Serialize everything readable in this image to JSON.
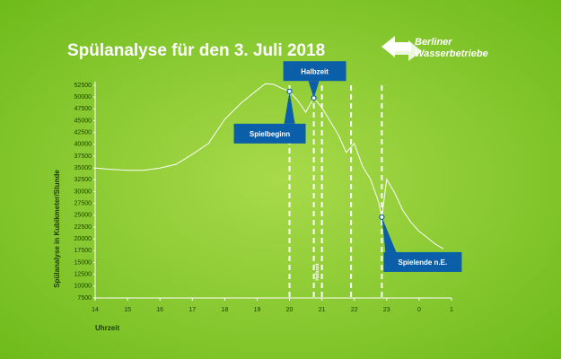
{
  "chart_data": {
    "type": "line",
    "title": "Spülanalyse für den 3. Juli 2018",
    "logo_text": [
      "Berliner",
      "Wasserbetriebe"
    ],
    "x_label": "Uhrzeit",
    "y_label": "Spülanalyse in Kubikmeter/Stunde",
    "color": "#ffffff",
    "x": [
      14,
      14.5,
      15,
      15.5,
      16,
      16.5,
      17,
      17.5,
      18,
      18.5,
      19,
      19.25,
      19.5,
      19.75,
      20,
      20.25,
      20.5,
      20.75,
      21,
      21.25,
      21.5,
      21.75,
      22,
      22.25,
      22.5,
      22.75,
      22.85,
      23,
      23.25,
      23.5,
      23.75,
      24,
      24.25,
      24.5,
      24.75
    ],
    "values": [
      35000,
      34700,
      34500,
      34500,
      35000,
      35800,
      37900,
      40200,
      45300,
      48700,
      51500,
      52800,
      52700,
      51900,
      51200,
      49300,
      46800,
      49800,
      47800,
      44900,
      42100,
      38300,
      40200,
      35400,
      32600,
      27800,
      24600,
      32600,
      29700,
      26000,
      23500,
      21600,
      20300,
      18900,
      17900
    ],
    "xlim": [
      14,
      25
    ],
    "ylim": [
      7500,
      52500
    ],
    "xticks": [
      14,
      15,
      16,
      17,
      18,
      19,
      20,
      21,
      22,
      23,
      {
        "value": 24,
        "label": "0"
      },
      {
        "value": 25,
        "label": "1"
      }
    ],
    "yticks": [
      7500,
      10000,
      12500,
      15000,
      17500,
      20000,
      22500,
      25000,
      27500,
      30000,
      32500,
      35000,
      37500,
      40000,
      42500,
      45000,
      47500,
      50000,
      52500
    ],
    "vlines": [
      20,
      20.75,
      21,
      21.9,
      22.85
    ],
    "vline_label": "Halbzeit",
    "annotations": [
      {
        "label": "Halbzeit",
        "x": 20.75,
        "y": 49800
      },
      {
        "label": "Spielbeginn",
        "x": 20,
        "y": 51200
      },
      {
        "label": "Spielende n.E.",
        "x": 22.85,
        "y": 24600
      }
    ]
  }
}
